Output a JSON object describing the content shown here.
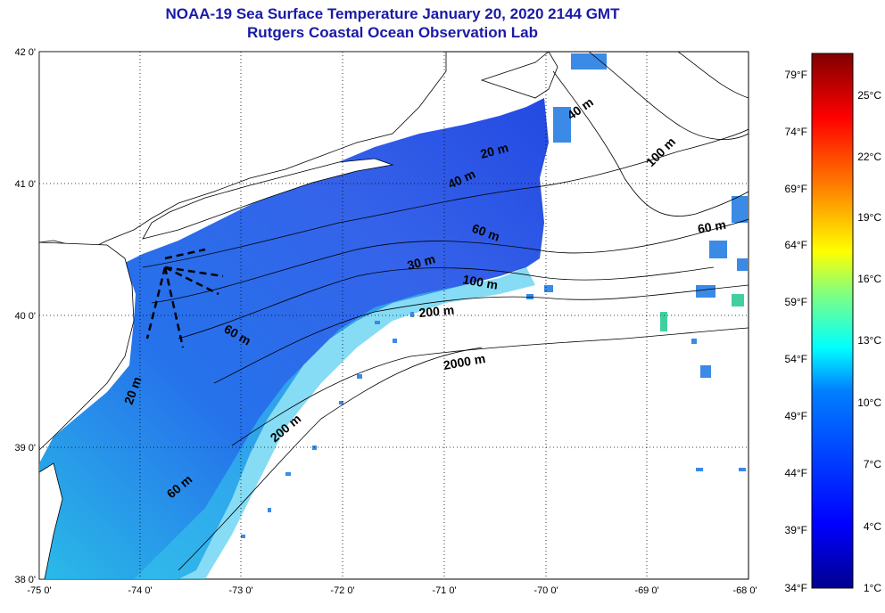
{
  "title": {
    "line1": "NOAA-19 Sea Surface Temperature January 20, 2020 2144 GMT",
    "line2": "Rutgers Coastal Ocean Observation Lab"
  },
  "map": {
    "lon_min": -75,
    "lon_max": -68,
    "lat_min": 38,
    "lat_max": 42,
    "x_ticks": [
      "-75 0'",
      "-74 0'",
      "-73 0'",
      "-72 0'",
      "-71 0'",
      "-70 0'",
      "-69 0'",
      "-68 0'"
    ],
    "y_ticks": [
      "42 0'",
      "41 0'",
      "40 0'",
      "39 0'",
      "38 0'"
    ],
    "contour_labels": [
      "40 m",
      "100 m",
      "20 m",
      "40 m",
      "60 m",
      "60 m",
      "30 m",
      "100 m",
      "200 m",
      "60 m",
      "2000 m",
      "20 m",
      "200 m",
      "60 m"
    ]
  },
  "colorbar": {
    "fahrenheit": [
      "79°F",
      "74°F",
      "69°F",
      "64°F",
      "59°F",
      "54°F",
      "49°F",
      "44°F",
      "39°F",
      "34°F"
    ],
    "celsius": [
      "25°C",
      "22°C",
      "19°C",
      "16°C",
      "13°C",
      "10°C",
      "7°C",
      "4°C",
      "1°C"
    ],
    "colors": [
      "#00008f",
      "#0000ff",
      "#0080ff",
      "#00ffff",
      "#80ff80",
      "#ffff00",
      "#ff8000",
      "#ff0000",
      "#800000"
    ]
  }
}
